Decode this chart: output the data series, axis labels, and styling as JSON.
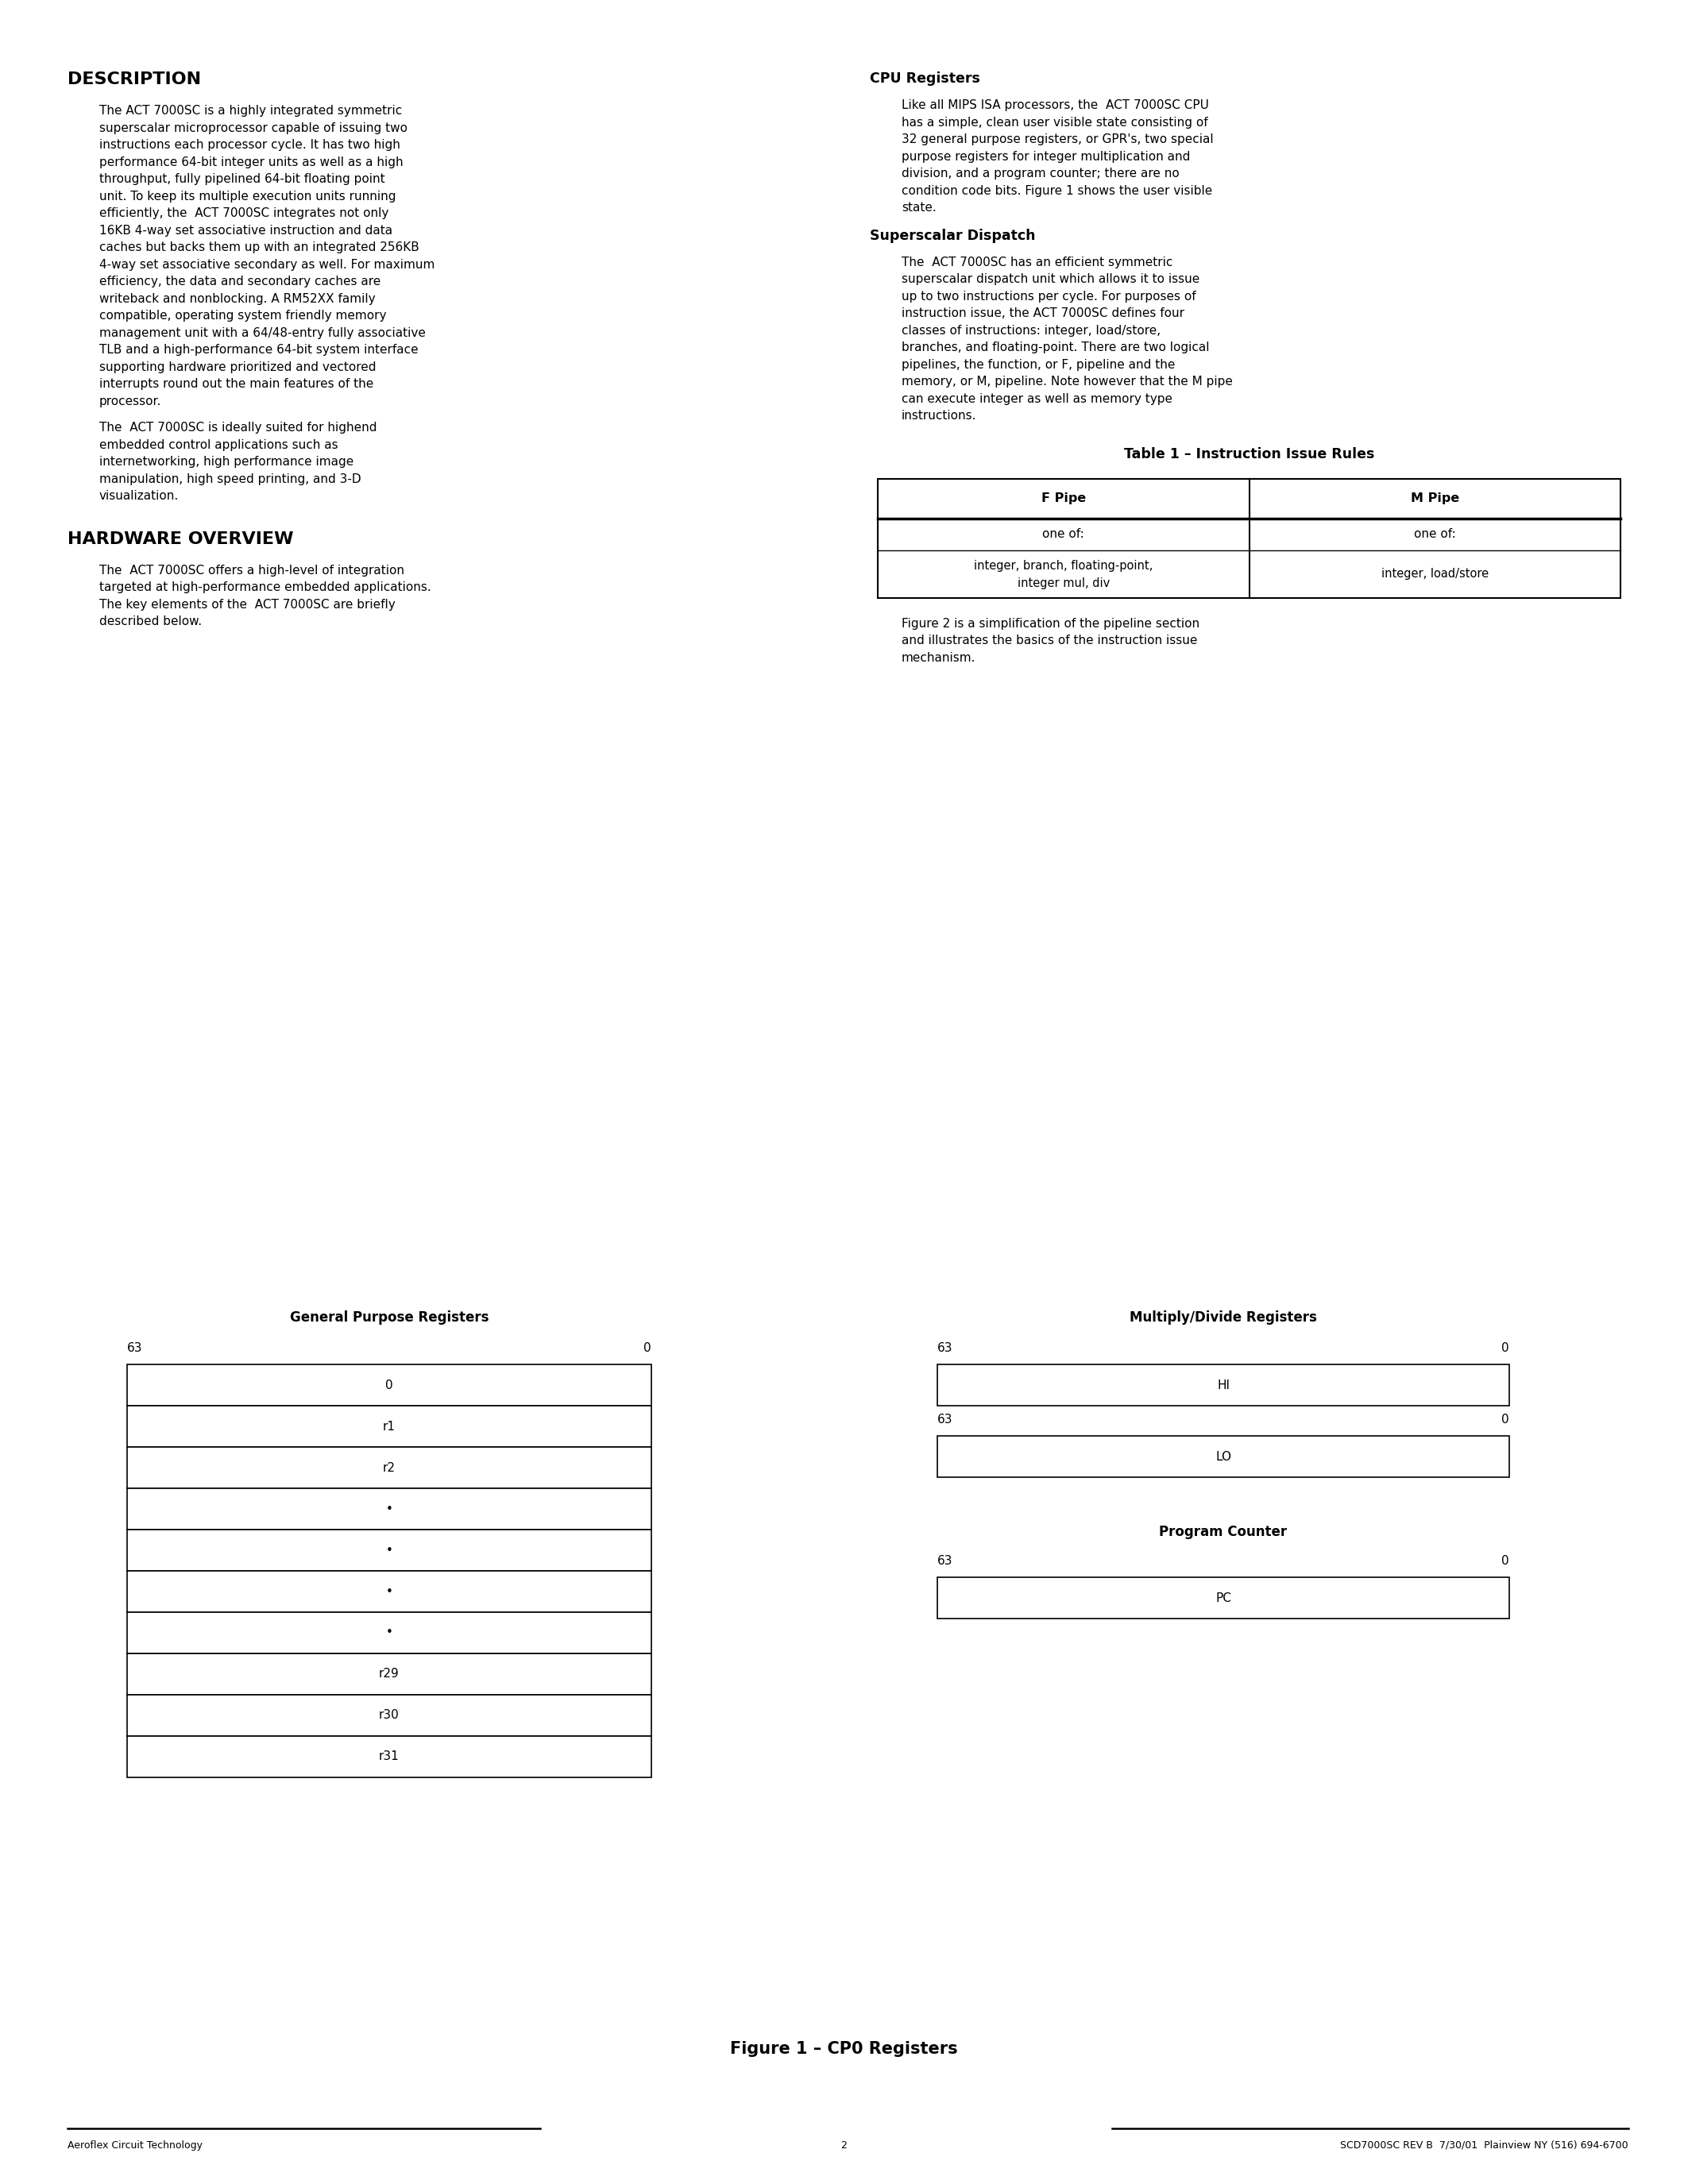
{
  "bg_color": "#ffffff",
  "text_color": "#000000",
  "description_heading": "DESCRIPTION",
  "description_text": "The ACT 7000SC is a highly integrated symmetric superscalar microprocessor capable of issuing two instructions each processor cycle. It has two high performance 64-bit integer units as well as a high throughput, fully pipelined 64-bit floating point unit. To keep its multiple execution units running efficiently, the  ACT 7000SC integrates not only 16KB 4-way set associative instruction and data caches but backs them up with an integrated 256KB 4-way set associative secondary as well. For maximum efficiency, the data and secondary caches are writeback and nonblocking. A RM52XX family compatible, operating system friendly memory management unit with a 64/48-entry fully associative TLB and a high-performance 64-bit system interface supporting hardware prioritized and vectored interrupts round out the main features of the processor.",
  "description_text2": "The  ACT 7000SC is ideally suited for highend embedded control applications such as internetworking, high performance image manipulation, high speed printing, and 3-D visualization.",
  "hardware_heading": "HARDWARE OVERVIEW",
  "hardware_text": "The  ACT 7000SC offers a high-level of integration targeted at high-performance embedded applications. The key elements of the  ACT 7000SC are briefly described below.",
  "cpu_registers_heading": "CPU Registers",
  "cpu_registers_text": "Like all MIPS ISA processors, the  ACT 7000SC CPU has a simple, clean user visible state consisting of 32 general purpose registers, or GPR's, two special purpose registers for integer multiplication and division, and a program counter; there are no condition code bits. Figure 1 shows the user visible state.",
  "superscalar_heading": "Superscalar Dispatch",
  "superscalar_text": "The  ACT 7000SC has an efficient symmetric superscalar dispatch unit which allows it to issue up to two instructions per cycle. For purposes of instruction issue, the ACT 7000SC defines four classes of instructions: integer, load/store, branches, and floating-point. There are two logical pipelines, the function, or F, pipeline and the memory, or M, pipeline. Note however that the M pipe can execute integer as well as memory type instructions.",
  "table_title": "Table 1 – Instruction Issue Rules",
  "table_fpipe": "F Pipe",
  "table_mpipe": "M Pipe",
  "table_oneof1": "one of:",
  "table_oneof2": "one of:",
  "table_cell1_line1": "integer, branch, floating-point,",
  "table_cell1_line2": "integer mul, div",
  "table_cell2": "integer, load/store",
  "figure2_text": "Figure 2 is a simplification of the pipeline section and illustrates the basics of the instruction issue mechanism.",
  "figure1_caption": "Figure 1 – CP0 Registers",
  "gpr_title": "General Purpose Registers",
  "gpr_labels": [
    "0",
    "r1",
    "r2",
    "•",
    "•",
    "•",
    "•",
    "r29",
    "r30",
    "r31"
  ],
  "gpr_63": "63",
  "gpr_0": "0",
  "mdr_title": "Multiply/Divide Registers",
  "mdr_hi": "HI",
  "mdr_lo": "LO",
  "mdr_63_hi": "63",
  "mdr_0_hi": "0",
  "mdr_63_lo": "63",
  "mdr_0_lo": "0",
  "pc_title": "Program Counter",
  "pc_label": "PC",
  "pc_63": "63",
  "pc_0": "0",
  "footer_left": "Aeroflex Circuit Technology",
  "footer_center": "2",
  "footer_right": "SCD7000SC REV B  7/30/01  Plainview NY (516) 694-6700"
}
